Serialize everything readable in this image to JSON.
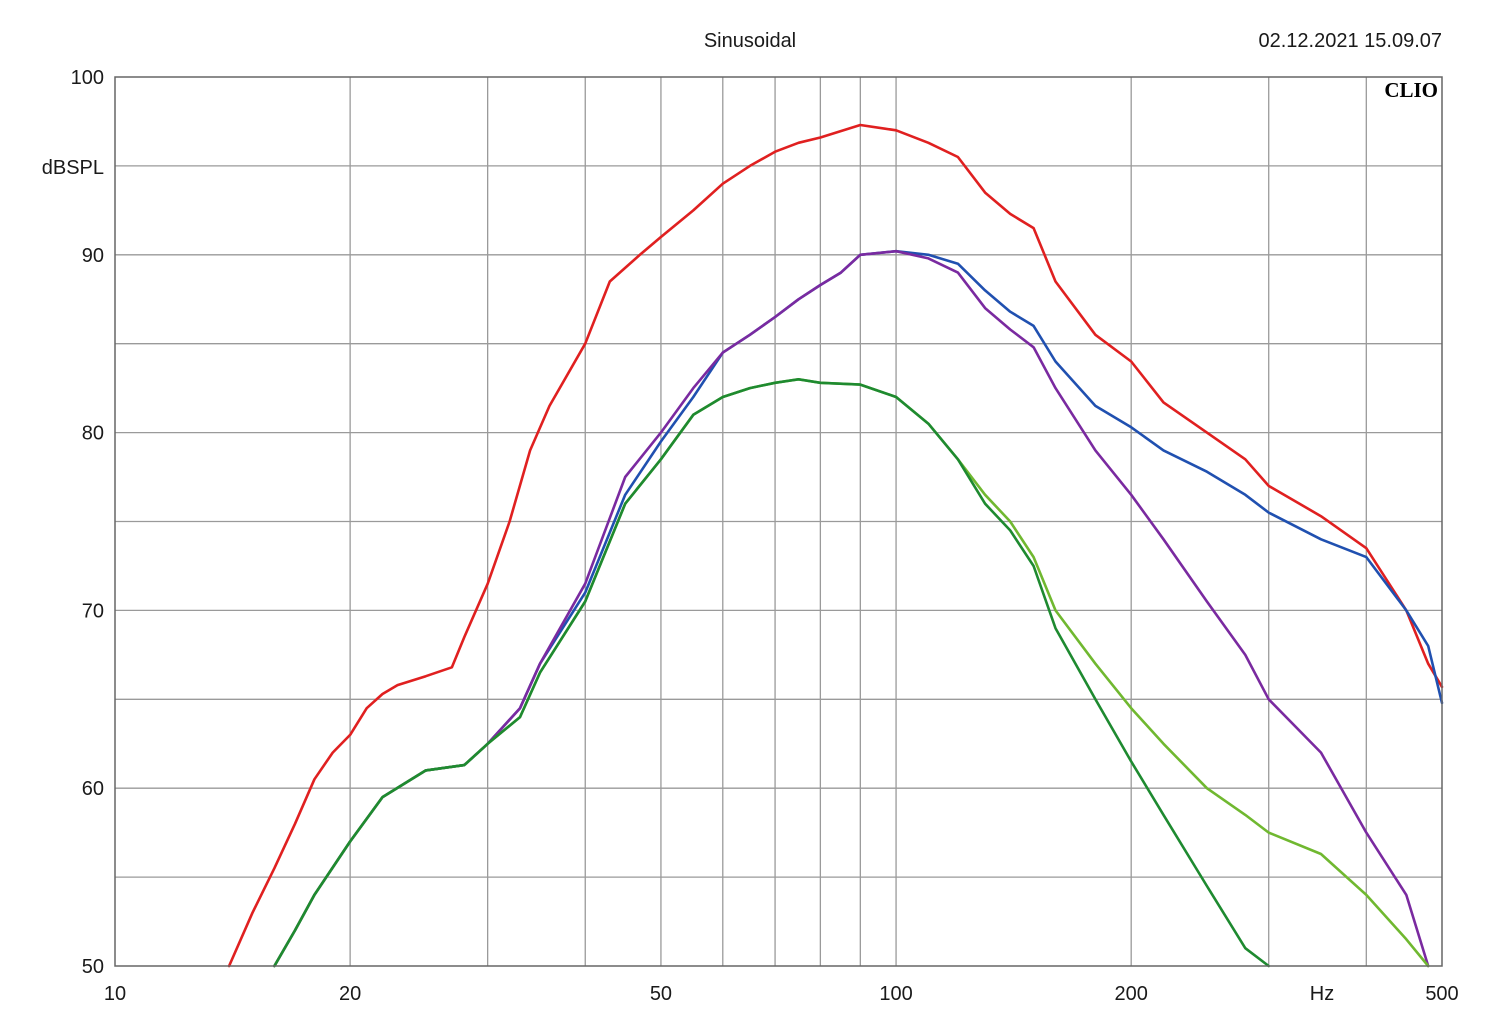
{
  "chart_data": {
    "type": "line",
    "title": "Sinusoidal",
    "timestamp": "02.12.2021 15.09.07",
    "brand": "CLIO",
    "ylabel": "dBSPL",
    "xlabel": "Hz",
    "xscale": "log",
    "xlim": [
      10,
      500
    ],
    "ylim": [
      50,
      100
    ],
    "grid": true,
    "x_ticks": [
      10,
      20,
      50,
      100,
      200,
      500
    ],
    "y_ticks": [
      50,
      60,
      70,
      80,
      90,
      100
    ],
    "series": [
      {
        "name": "red",
        "color": "#e02020",
        "points": [
          [
            14,
            50
          ],
          [
            15,
            53
          ],
          [
            16,
            55.5
          ],
          [
            17,
            58
          ],
          [
            18,
            60.5
          ],
          [
            19,
            62
          ],
          [
            20,
            63
          ],
          [
            21,
            64.5
          ],
          [
            22,
            65.3
          ],
          [
            23,
            65.8
          ],
          [
            25,
            66.3
          ],
          [
            27,
            66.8
          ],
          [
            28,
            68.5
          ],
          [
            30,
            71.5
          ],
          [
            32,
            75
          ],
          [
            34,
            79
          ],
          [
            36,
            81.5
          ],
          [
            40,
            85
          ],
          [
            43,
            88.5
          ],
          [
            47,
            90
          ],
          [
            50,
            91
          ],
          [
            55,
            92.5
          ],
          [
            60,
            94
          ],
          [
            65,
            95
          ],
          [
            70,
            95.8
          ],
          [
            75,
            96.3
          ],
          [
            80,
            96.6
          ],
          [
            90,
            97.3
          ],
          [
            100,
            97
          ],
          [
            110,
            96.3
          ],
          [
            120,
            95.5
          ],
          [
            130,
            93.5
          ],
          [
            140,
            92.3
          ],
          [
            150,
            91.5
          ],
          [
            160,
            88.5
          ],
          [
            180,
            85.5
          ],
          [
            200,
            84
          ],
          [
            220,
            81.7
          ],
          [
            250,
            80
          ],
          [
            280,
            78.5
          ],
          [
            300,
            77
          ],
          [
            350,
            75.3
          ],
          [
            400,
            73.5
          ],
          [
            450,
            70
          ],
          [
            480,
            67
          ],
          [
            500,
            65.7
          ]
        ]
      },
      {
        "name": "blue",
        "color": "#2050b0",
        "points": [
          [
            16,
            50
          ],
          [
            17,
            52
          ],
          [
            18,
            54
          ],
          [
            20,
            57
          ],
          [
            22,
            59.5
          ],
          [
            25,
            61
          ],
          [
            28,
            61.3
          ],
          [
            30,
            62.5
          ],
          [
            33,
            64.5
          ],
          [
            35,
            67
          ],
          [
            40,
            71
          ],
          [
            45,
            76.5
          ],
          [
            50,
            79.5
          ],
          [
            55,
            82
          ],
          [
            60,
            84.5
          ],
          [
            65,
            85.5
          ],
          [
            70,
            86.5
          ],
          [
            75,
            87.5
          ],
          [
            80,
            88.3
          ],
          [
            85,
            89
          ],
          [
            90,
            90
          ],
          [
            100,
            90.2
          ],
          [
            110,
            90
          ],
          [
            120,
            89.5
          ],
          [
            130,
            88
          ],
          [
            140,
            86.8
          ],
          [
            150,
            86
          ],
          [
            160,
            84
          ],
          [
            180,
            81.5
          ],
          [
            200,
            80.3
          ],
          [
            220,
            79
          ],
          [
            250,
            77.8
          ],
          [
            280,
            76.5
          ],
          [
            300,
            75.5
          ],
          [
            350,
            74
          ],
          [
            400,
            73
          ],
          [
            450,
            70
          ],
          [
            480,
            68
          ],
          [
            500,
            64.8
          ]
        ]
      },
      {
        "name": "purple",
        "color": "#7a2aa0",
        "points": [
          [
            16,
            50
          ],
          [
            17,
            52
          ],
          [
            18,
            54
          ],
          [
            20,
            57
          ],
          [
            22,
            59.5
          ],
          [
            25,
            61
          ],
          [
            28,
            61.3
          ],
          [
            30,
            62.5
          ],
          [
            33,
            64.5
          ],
          [
            35,
            67
          ],
          [
            40,
            71.5
          ],
          [
            45,
            77.5
          ],
          [
            50,
            80
          ],
          [
            55,
            82.5
          ],
          [
            60,
            84.5
          ],
          [
            65,
            85.5
          ],
          [
            70,
            86.5
          ],
          [
            75,
            87.5
          ],
          [
            80,
            88.3
          ],
          [
            85,
            89
          ],
          [
            90,
            90
          ],
          [
            100,
            90.2
          ],
          [
            110,
            89.8
          ],
          [
            120,
            89
          ],
          [
            130,
            87
          ],
          [
            140,
            85.8
          ],
          [
            150,
            84.8
          ],
          [
            160,
            82.5
          ],
          [
            180,
            79
          ],
          [
            200,
            76.5
          ],
          [
            220,
            74
          ],
          [
            250,
            70.5
          ],
          [
            280,
            67.5
          ],
          [
            300,
            65
          ],
          [
            350,
            62
          ],
          [
            400,
            57.5
          ],
          [
            450,
            54
          ],
          [
            480,
            50
          ]
        ]
      },
      {
        "name": "light-green",
        "color": "#70b830",
        "points": [
          [
            16,
            50
          ],
          [
            17,
            52
          ],
          [
            18,
            54
          ],
          [
            20,
            57
          ],
          [
            22,
            59.5
          ],
          [
            25,
            61
          ],
          [
            28,
            61.3
          ],
          [
            30,
            62.5
          ],
          [
            33,
            64
          ],
          [
            35,
            66.5
          ],
          [
            40,
            70.5
          ],
          [
            45,
            76
          ],
          [
            50,
            78.5
          ],
          [
            55,
            81
          ],
          [
            60,
            82
          ],
          [
            65,
            82.5
          ],
          [
            70,
            82.8
          ],
          [
            75,
            83
          ],
          [
            80,
            82.8
          ],
          [
            90,
            82.7
          ],
          [
            100,
            82
          ],
          [
            110,
            80.5
          ],
          [
            120,
            78.5
          ],
          [
            130,
            76.5
          ],
          [
            140,
            75
          ],
          [
            150,
            73
          ],
          [
            160,
            70
          ],
          [
            180,
            67
          ],
          [
            200,
            64.5
          ],
          [
            220,
            62.5
          ],
          [
            250,
            60
          ],
          [
            280,
            58.5
          ],
          [
            300,
            57.5
          ],
          [
            350,
            56.3
          ],
          [
            400,
            54
          ],
          [
            450,
            51.5
          ],
          [
            480,
            50
          ]
        ]
      },
      {
        "name": "dark-green",
        "color": "#1e8a30",
        "points": [
          [
            16,
            50
          ],
          [
            17,
            52
          ],
          [
            18,
            54
          ],
          [
            20,
            57
          ],
          [
            22,
            59.5
          ],
          [
            25,
            61
          ],
          [
            28,
            61.3
          ],
          [
            30,
            62.5
          ],
          [
            33,
            64
          ],
          [
            35,
            66.5
          ],
          [
            40,
            70.5
          ],
          [
            45,
            76
          ],
          [
            50,
            78.5
          ],
          [
            55,
            81
          ],
          [
            60,
            82
          ],
          [
            65,
            82.5
          ],
          [
            70,
            82.8
          ],
          [
            75,
            83
          ],
          [
            80,
            82.8
          ],
          [
            90,
            82.7
          ],
          [
            100,
            82
          ],
          [
            110,
            80.5
          ],
          [
            120,
            78.5
          ],
          [
            130,
            76
          ],
          [
            140,
            74.5
          ],
          [
            150,
            72.5
          ],
          [
            160,
            69
          ],
          [
            180,
            65
          ],
          [
            200,
            61.5
          ],
          [
            220,
            58.5
          ],
          [
            250,
            54.5
          ],
          [
            280,
            51
          ],
          [
            300,
            50
          ]
        ]
      }
    ]
  }
}
